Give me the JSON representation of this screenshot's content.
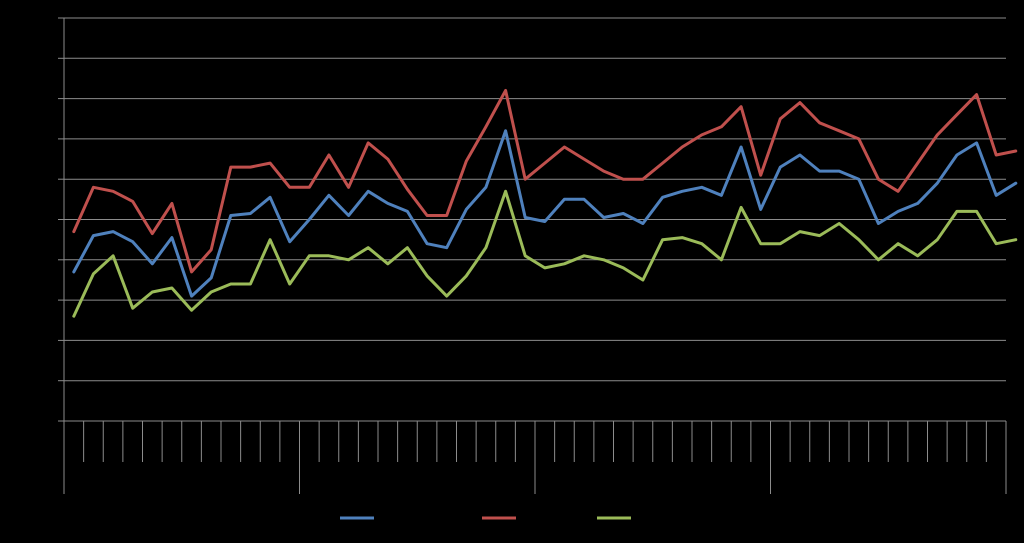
{
  "chart_data": {
    "type": "line",
    "title": "",
    "xlabel": "",
    "ylabel": "",
    "ylim": [
      0,
      10
    ],
    "y_gridlines": [
      1,
      2,
      3,
      4,
      5,
      6,
      7,
      8,
      9,
      10
    ],
    "x_count": 48,
    "x_group_size": 12,
    "grid": true,
    "legend_position": "bottom",
    "background": "#000000",
    "grid_color": "#8c8c8c",
    "series": [
      {
        "color": "#4f81bd",
        "values": [
          3.7,
          4.6,
          4.7,
          4.45,
          3.9,
          4.55,
          3.1,
          3.55,
          5.1,
          5.15,
          5.55,
          4.45,
          5.0,
          5.6,
          5.1,
          5.7,
          5.4,
          5.2,
          4.4,
          4.3,
          5.25,
          5.8,
          7.2,
          5.05,
          4.95,
          5.5,
          5.5,
          5.05,
          5.15,
          4.9,
          5.55,
          5.7,
          5.8,
          5.6,
          6.8,
          5.25,
          6.3,
          6.6,
          6.2,
          6.2,
          6.0,
          4.9,
          5.2,
          5.4,
          5.9,
          6.6,
          6.9,
          5.6,
          5.9
        ]
      },
      {
        "color": "#c0504d",
        "values": [
          4.7,
          5.8,
          5.7,
          5.45,
          4.65,
          5.4,
          3.7,
          4.25,
          6.3,
          6.3,
          6.4,
          5.8,
          5.8,
          6.6,
          5.8,
          6.9,
          6.5,
          5.75,
          5.1,
          5.1,
          6.45,
          7.3,
          8.2,
          6.0,
          6.4,
          6.8,
          6.5,
          6.2,
          6.0,
          6.0,
          6.4,
          6.8,
          7.1,
          7.3,
          7.8,
          6.1,
          7.5,
          7.9,
          7.4,
          7.2,
          7.0,
          6.0,
          5.7,
          6.4,
          7.1,
          7.6,
          8.1,
          6.6,
          6.7
        ]
      },
      {
        "color": "#9bbb59",
        "values": [
          2.6,
          3.65,
          4.1,
          2.8,
          3.2,
          3.3,
          2.75,
          3.2,
          3.4,
          3.4,
          4.5,
          3.4,
          4.1,
          4.1,
          4.0,
          4.3,
          3.9,
          4.3,
          3.6,
          3.1,
          3.6,
          4.3,
          5.7,
          4.1,
          3.8,
          3.9,
          4.1,
          4.0,
          3.8,
          3.5,
          4.5,
          4.55,
          4.4,
          4.0,
          5.3,
          4.4,
          4.4,
          4.7,
          4.6,
          4.9,
          4.5,
          4.0,
          4.4,
          4.1,
          4.5,
          5.2,
          5.2,
          4.4,
          4.5
        ]
      }
    ]
  }
}
